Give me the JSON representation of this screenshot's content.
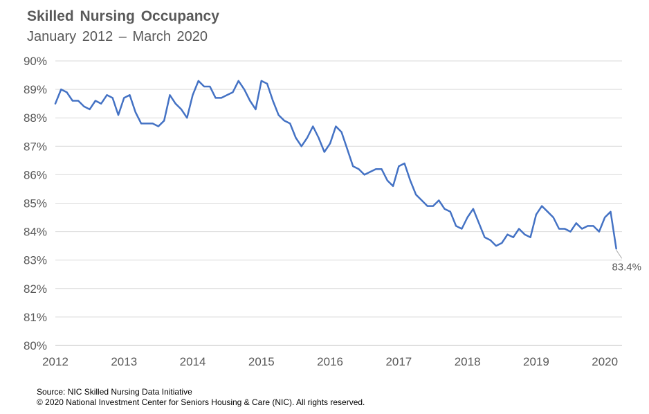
{
  "header": {
    "title": "Skilled Nursing Occupancy",
    "subtitle": "January 2012 – March 2020"
  },
  "footer": {
    "source": "Source: NIC Skilled Nursing Data Initiative",
    "copyright": "© 2020 National Investment Center for Seniors Housing & Care (NIC). All rights reserved."
  },
  "chart_data": {
    "type": "line",
    "title": "Skilled Nursing Occupancy",
    "subtitle": "January 2012 – March 2020",
    "xlabel": "",
    "ylabel": "",
    "xlim": [
      2012,
      2020.25
    ],
    "ylim": [
      80,
      90
    ],
    "x_ticks": [
      "2012",
      "2013",
      "2014",
      "2015",
      "2016",
      "2017",
      "2018",
      "2019",
      "2020"
    ],
    "y_ticks": [
      "80%",
      "81%",
      "82%",
      "83%",
      "84%",
      "85%",
      "86%",
      "87%",
      "88%",
      "89%",
      "90%"
    ],
    "grid": true,
    "legend": "none",
    "line_color": "#4472c4",
    "annotation": "83.4%",
    "series": [
      {
        "start": "2012-01",
        "values": [
          88.5,
          89.0,
          88.9,
          88.6,
          88.6,
          88.4,
          88.3,
          88.6,
          88.5,
          88.8,
          88.7,
          88.1,
          88.7,
          88.8,
          88.2,
          87.8,
          87.8,
          87.8,
          87.7,
          87.9,
          88.8,
          88.5,
          88.3,
          88.0,
          88.8,
          89.3,
          89.1,
          89.1,
          88.7,
          88.7,
          88.8,
          88.9,
          89.3,
          89.0,
          88.6,
          88.3,
          89.3,
          89.2,
          88.6,
          88.1,
          87.9,
          87.8,
          87.3,
          87.0,
          87.3,
          87.7,
          87.3,
          86.8,
          87.1,
          87.7,
          87.5,
          86.9,
          86.3,
          86.2,
          86.0,
          86.1,
          86.2,
          86.2,
          85.8,
          85.6,
          86.3,
          86.4,
          85.8,
          85.3,
          85.1,
          84.9,
          84.9,
          85.1,
          84.8,
          84.7,
          84.2,
          84.1,
          84.5,
          84.8,
          84.3,
          83.8,
          83.7,
          83.5,
          83.6,
          83.9,
          83.8,
          84.1,
          83.9,
          83.8,
          84.6,
          84.9,
          84.7,
          84.5,
          84.1,
          84.1,
          84.0,
          84.3,
          84.1,
          84.2,
          84.2,
          84.0,
          84.5,
          84.7,
          83.4
        ]
      }
    ]
  }
}
